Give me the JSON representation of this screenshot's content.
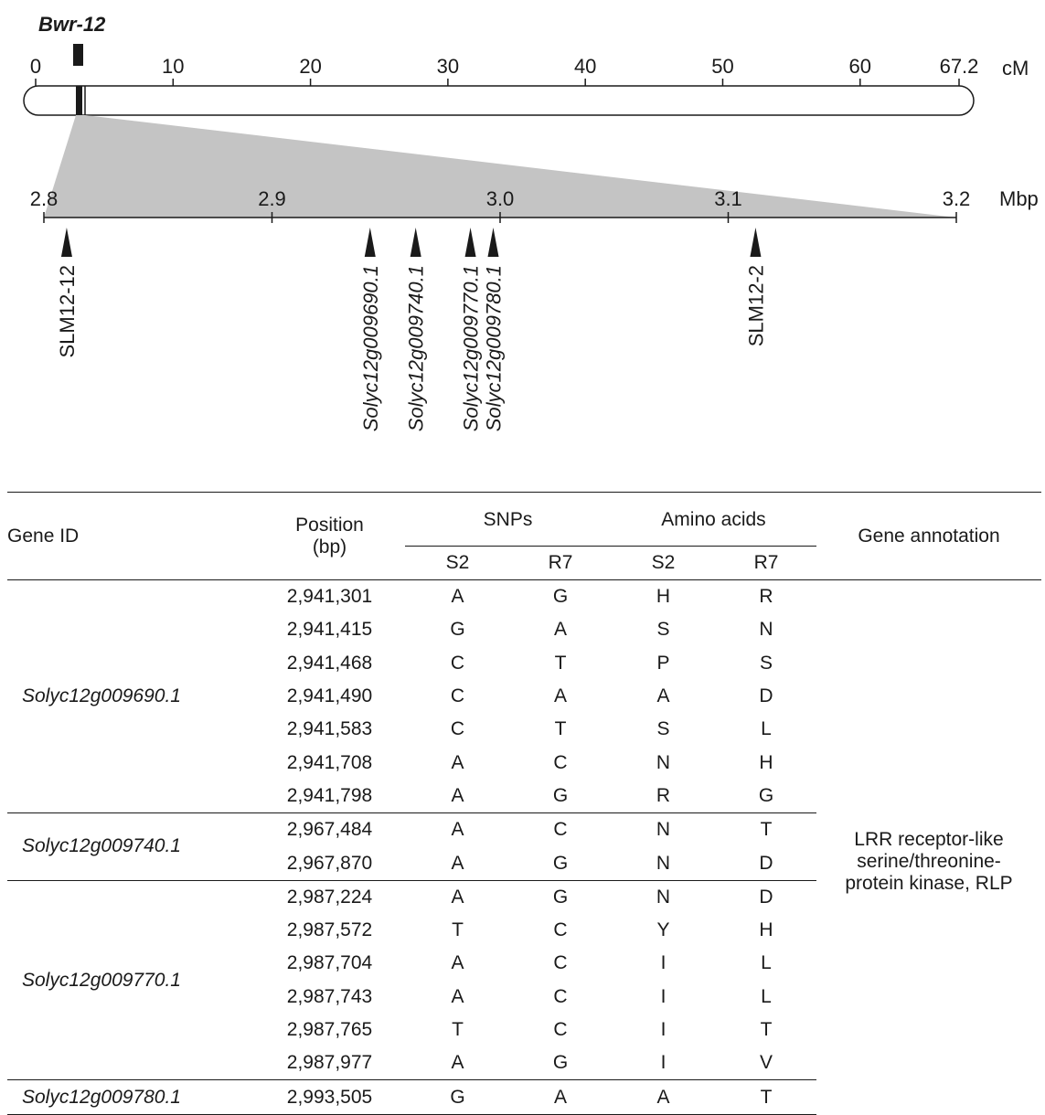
{
  "map": {
    "locus_label": "Bwr-12",
    "cm_unit": "cM",
    "cm_max": 67.2,
    "cm_ticks": [
      {
        "value": 0,
        "label": "0"
      },
      {
        "value": 10,
        "label": "10"
      },
      {
        "value": 20,
        "label": "20"
      },
      {
        "value": 30,
        "label": "30"
      },
      {
        "value": 40,
        "label": "40"
      },
      {
        "value": 50,
        "label": "50"
      },
      {
        "value": 60,
        "label": "60"
      },
      {
        "value": 67.2,
        "label": "67.2"
      }
    ],
    "locus_cm": 3.2,
    "mbp_unit": "Mbp",
    "mbp_range": [
      2.8,
      3.2
    ],
    "mbp_ticks": [
      {
        "value": 2.8,
        "label": "2.8"
      },
      {
        "value": 2.9,
        "label": "2.9"
      },
      {
        "value": 3.0,
        "label": "3.0"
      },
      {
        "value": 3.1,
        "label": "3.1"
      },
      {
        "value": 3.2,
        "label": "3.2"
      }
    ],
    "markers": [
      {
        "label": "SLM12-12",
        "mbp": 2.81,
        "italic": false
      },
      {
        "label": "Solyc12g009690.1",
        "mbp": 2.943,
        "italic": true
      },
      {
        "label": "Solyc12g009740.1",
        "mbp": 2.963,
        "italic": true
      },
      {
        "label": "Solyc12g009770.1",
        "mbp": 2.987,
        "italic": true
      },
      {
        "label": "Solyc12g009780.1",
        "mbp": 2.997,
        "italic": true
      },
      {
        "label": "SLM12-2",
        "mbp": 3.112,
        "italic": false
      }
    ]
  },
  "table": {
    "headers": {
      "gene_id": "Gene ID",
      "position_line1": "Position",
      "position_line2": "(bp)",
      "snps": "SNPs",
      "amino_acids": "Amino acids",
      "gene_annotation": "Gene annotation",
      "s2": "S2",
      "r7": "R7"
    },
    "annotation": "LRR receptor-like serine/threonine-protein kinase, RLP",
    "groups": [
      {
        "gene": "Solyc12g009690.1",
        "rows": [
          [
            "2,941,301",
            "A",
            "G",
            "H",
            "R"
          ],
          [
            "2,941,415",
            "G",
            "A",
            "S",
            "N"
          ],
          [
            "2,941,468",
            "C",
            "T",
            "P",
            "S"
          ],
          [
            "2,941,490",
            "C",
            "A",
            "A",
            "D"
          ],
          [
            "2,941,583",
            "C",
            "T",
            "S",
            "L"
          ],
          [
            "2,941,708",
            "A",
            "C",
            "N",
            "H"
          ],
          [
            "2,941,798",
            "A",
            "G",
            "R",
            "G"
          ]
        ]
      },
      {
        "gene": "Solyc12g009740.1",
        "rows": [
          [
            "2,967,484",
            "A",
            "C",
            "N",
            "T"
          ],
          [
            "2,967,870",
            "A",
            "G",
            "N",
            "D"
          ]
        ]
      },
      {
        "gene": "Solyc12g009770.1",
        "rows": [
          [
            "2,987,224",
            "A",
            "G",
            "N",
            "D"
          ],
          [
            "2,987,572",
            "T",
            "C",
            "Y",
            "H"
          ],
          [
            "2,987,704",
            "A",
            "C",
            "I",
            "L"
          ],
          [
            "2,987,743",
            "A",
            "C",
            "I",
            "L"
          ],
          [
            "2,987,765",
            "T",
            "C",
            "I",
            "T"
          ],
          [
            "2,987,977",
            "A",
            "G",
            "I",
            "V"
          ]
        ]
      },
      {
        "gene": "Solyc12g009780.1",
        "rows": [
          [
            "2,993,505",
            "G",
            "A",
            "A",
            "T"
          ]
        ]
      }
    ]
  }
}
